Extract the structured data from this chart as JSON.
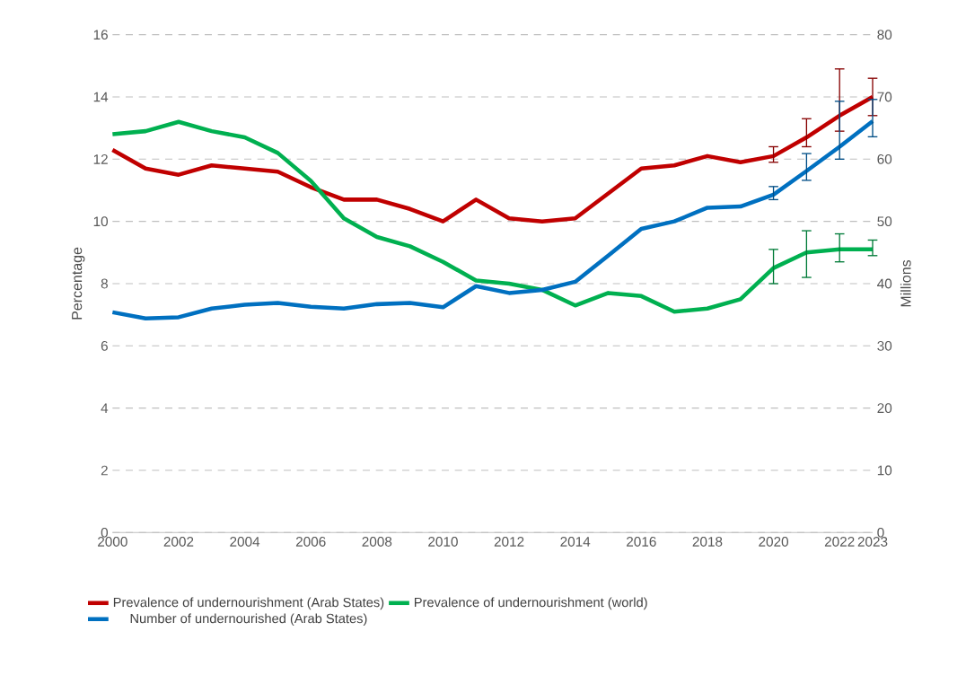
{
  "chart_data": {
    "type": "line",
    "x": [
      2000,
      2001,
      2002,
      2003,
      2004,
      2005,
      2006,
      2007,
      2008,
      2009,
      2010,
      2011,
      2012,
      2013,
      2014,
      2015,
      2016,
      2017,
      2018,
      2019,
      2020,
      2021,
      2022,
      2023
    ],
    "series": [
      {
        "name": "Prevalence of undernourishment (Arab States)",
        "color": "#c00000",
        "values": [
          12.3,
          11.7,
          11.5,
          11.8,
          11.7,
          11.6,
          11.1,
          10.7,
          10.7,
          10.4,
          10.0,
          10.7,
          10.1,
          10.0,
          10.1,
          10.9,
          11.7,
          11.8,
          12.1,
          11.9,
          12.1,
          12.7,
          13.4,
          14.0
        ],
        "errors": [
          null,
          null,
          null,
          null,
          null,
          null,
          null,
          null,
          null,
          null,
          null,
          null,
          null,
          null,
          null,
          null,
          null,
          null,
          null,
          null,
          [
            11.9,
            12.4
          ],
          [
            12.4,
            13.3
          ],
          [
            12.9,
            14.9
          ],
          [
            13.4,
            14.6
          ]
        ]
      },
      {
        "name": "Prevalence of undernourishment (world)",
        "color": "#00b050",
        "values": [
          12.8,
          12.9,
          13.2,
          12.9,
          12.7,
          12.2,
          11.3,
          10.1,
          9.5,
          9.2,
          8.7,
          8.1,
          8.0,
          7.8,
          7.3,
          7.7,
          7.6,
          7.1,
          7.2,
          7.5,
          8.5,
          9.0,
          9.1,
          9.1
        ],
        "errors": [
          null,
          null,
          null,
          null,
          null,
          null,
          null,
          null,
          null,
          null,
          null,
          null,
          null,
          null,
          null,
          null,
          null,
          null,
          null,
          null,
          [
            8.0,
            9.1
          ],
          [
            8.2,
            9.7
          ],
          [
            8.7,
            9.6
          ],
          [
            8.9,
            9.4
          ]
        ]
      },
      {
        "name": "Number of undernourished (Arab States)",
        "color": "#0070c0",
        "axis": "y2",
        "values": [
          35.4,
          34.4,
          34.6,
          36.0,
          36.6,
          36.9,
          36.3,
          36.0,
          36.7,
          36.9,
          36.2,
          39.6,
          38.5,
          39.0,
          40.3,
          44.5,
          48.8,
          50.0,
          52.2,
          52.4,
          54.3,
          58.1,
          62.0,
          66.1
        ],
        "errors": [
          null,
          null,
          null,
          null,
          null,
          null,
          null,
          null,
          null,
          null,
          null,
          null,
          null,
          null,
          null,
          null,
          null,
          null,
          null,
          null,
          [
            53.5,
            55.6
          ],
          [
            56.6,
            60.9
          ],
          [
            60.0,
            69.3
          ],
          [
            63.6,
            69.6
          ]
        ]
      }
    ],
    "ylabel": "Percentage",
    "y2label": "Millions",
    "xlim": [
      2000,
      2023
    ],
    "xticks": [
      2000,
      2002,
      2004,
      2006,
      2008,
      2010,
      2012,
      2014,
      2016,
      2018,
      2020,
      2022,
      2023
    ],
    "ylim": [
      0,
      16
    ],
    "yticks": [
      0,
      2,
      4,
      6,
      8,
      10,
      12,
      14,
      16
    ],
    "y2lim": [
      0,
      80
    ],
    "y2ticks": [
      0,
      10,
      20,
      30,
      40,
      50,
      60,
      70,
      80
    ],
    "grid": "y",
    "legend": "bottom",
    "marker": "none",
    "line_style": "solid"
  }
}
